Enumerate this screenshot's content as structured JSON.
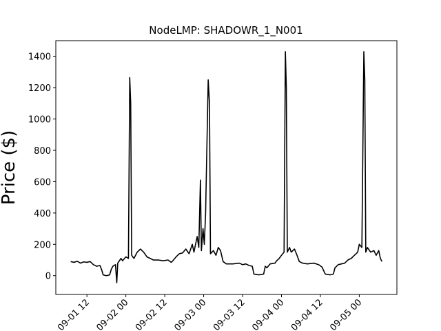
{
  "chart_data": {
    "type": "line",
    "title": "NodeLMP: SHADOWR_1_N001",
    "y_label": "Price ($)",
    "x": [
      7,
      8,
      9,
      10,
      11,
      12,
      13,
      14,
      15,
      16,
      16.5,
      17,
      18,
      19,
      19.5,
      20,
      20.8,
      21.2,
      21.5,
      22.5,
      23,
      24,
      24.8,
      25.2,
      25.5,
      25.8,
      26.5,
      27.5,
      28.5,
      29.5,
      30.5,
      31.5,
      32.5,
      34,
      35.5,
      37,
      38,
      38.5,
      39.5,
      40.5,
      41.5,
      42.5,
      43.5,
      44.5,
      45,
      46,
      46.5,
      47,
      47.3,
      47.8,
      48.2,
      48.6,
      49.4,
      49.8,
      50.1,
      51,
      51.8,
      52.5,
      53.2,
      54,
      55,
      57,
      59,
      60,
      61,
      62,
      63,
      63.5,
      65,
      66.5,
      67,
      67.5,
      68.5,
      70,
      70.5,
      71.3,
      72,
      72.8,
      73.2,
      73.5,
      73.8,
      74.5,
      75,
      76,
      76.8,
      77.5,
      78.5,
      80,
      82,
      83.5,
      84.5,
      85.5,
      87,
      88,
      88.5,
      89.5,
      90.5,
      91.5,
      92.5,
      93.5,
      94.5,
      95.5,
      96,
      96.8,
      97.4,
      97.7,
      98,
      98.5,
      99.5,
      100.5,
      101.2,
      102,
      102.5,
      103
    ],
    "series": [
      {
        "name": "Price",
        "color": "#000000",
        "values": [
          90,
          85,
          92,
          80,
          88,
          85,
          90,
          70,
          60,
          65,
          40,
          5,
          0,
          5,
          40,
          60,
          70,
          -45,
          80,
          110,
          95,
          120,
          110,
          1265,
          1100,
          130,
          110,
          150,
          170,
          150,
          120,
          110,
          100,
          100,
          95,
          100,
          85,
          95,
          120,
          140,
          145,
          170,
          140,
          200,
          150,
          250,
          180,
          610,
          160,
          300,
          200,
          400,
          1250,
          1100,
          140,
          160,
          130,
          180,
          160,
          90,
          75,
          75,
          80,
          70,
          75,
          65,
          60,
          10,
          5,
          10,
          60,
          50,
          75,
          80,
          95,
          110,
          130,
          150,
          1430,
          1200,
          150,
          180,
          150,
          170,
          130,
          90,
          80,
          75,
          80,
          70,
          55,
          10,
          5,
          10,
          50,
          70,
          75,
          80,
          100,
          110,
          130,
          150,
          200,
          180,
          1430,
          1250,
          150,
          180,
          150,
          160,
          130,
          160,
          110,
          90
        ]
      }
    ],
    "xlim": [
      2.4,
      107.6
    ],
    "xticks": [
      {
        "value": 12,
        "label": "09-01 12"
      },
      {
        "value": 24,
        "label": "09-02 00"
      },
      {
        "value": 36,
        "label": "09-02 12"
      },
      {
        "value": 48,
        "label": "09-03 00"
      },
      {
        "value": 60,
        "label": "09-03 12"
      },
      {
        "value": 72,
        "label": "09-04 00"
      },
      {
        "value": 84,
        "label": "09-04 12"
      },
      {
        "value": 96,
        "label": "09-05 00"
      }
    ],
    "ylim": [
      -120,
      1500
    ],
    "yticks": [
      0,
      200,
      400,
      600,
      800,
      1000,
      1200,
      1400
    ],
    "grid": false
  }
}
